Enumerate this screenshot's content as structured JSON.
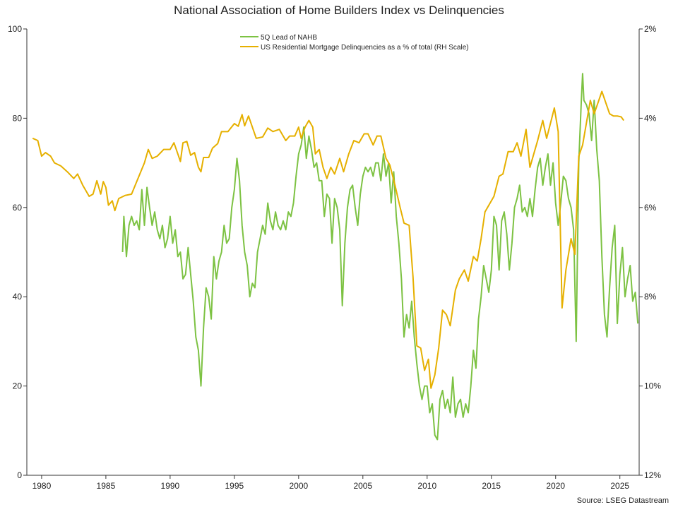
{
  "chart_data": {
    "type": "line",
    "title": "National Association of Home Builders Index vs Delinquencies",
    "source": "Source: LSEG Datastream",
    "xlim": [
      1978.85,
      2026.5
    ],
    "xticks": [
      1980,
      1985,
      1990,
      1995,
      2000,
      2005,
      2010,
      2015,
      2020,
      2025
    ],
    "ylim": [
      0,
      100
    ],
    "yticks": [
      0,
      20,
      40,
      60,
      80,
      100
    ],
    "y2lim": [
      12,
      2
    ],
    "y2ticks": [
      {
        "value": 2,
        "label": "2%"
      },
      {
        "value": 4,
        "label": "4%"
      },
      {
        "value": 6,
        "label": "6%"
      },
      {
        "value": 8,
        "label": "8%"
      },
      {
        "value": 10,
        "label": "10%"
      },
      {
        "value": 12,
        "label": "12%"
      }
    ],
    "legend": "top-center",
    "series": [
      {
        "name": "5Q Lead of NAHB",
        "color": "#7dc243",
        "x": [
          1986.3,
          1986.4,
          1986.6,
          1986.8,
          1987,
          1987.2,
          1987.4,
          1987.6,
          1987.8,
          1988,
          1988.2,
          1988.4,
          1988.6,
          1988.8,
          1989,
          1989.2,
          1989.4,
          1989.6,
          1989.8,
          1990,
          1990.2,
          1990.4,
          1990.6,
          1990.8,
          1991,
          1991.2,
          1991.4,
          1991.6,
          1991.8,
          1992,
          1992.2,
          1992.4,
          1992.6,
          1992.8,
          1993,
          1993.2,
          1993.4,
          1993.6,
          1993.8,
          1994,
          1994.2,
          1994.4,
          1994.6,
          1994.8,
          1995,
          1995.2,
          1995.4,
          1995.6,
          1995.8,
          1996,
          1996.2,
          1996.4,
          1996.6,
          1996.8,
          1997,
          1997.2,
          1997.4,
          1997.6,
          1997.8,
          1998,
          1998.2,
          1998.4,
          1998.6,
          1998.8,
          1999,
          1999.2,
          1999.4,
          1999.6,
          1999.8,
          2000,
          2000.2,
          2000.4,
          2000.6,
          2000.8,
          2001,
          2001.2,
          2001.4,
          2001.6,
          2001.8,
          2002,
          2002.2,
          2002.4,
          2002.6,
          2002.8,
          2003,
          2003.2,
          2003.4,
          2003.6,
          2003.8,
          2004,
          2004.2,
          2004.4,
          2004.6,
          2004.8,
          2005,
          2005.2,
          2005.4,
          2005.6,
          2005.8,
          2006,
          2006.2,
          2006.4,
          2006.6,
          2006.8,
          2007,
          2007.2,
          2007.4,
          2007.6,
          2007.8,
          2008,
          2008.2,
          2008.4,
          2008.6,
          2008.8,
          2009,
          2009.2,
          2009.4,
          2009.6,
          2009.8,
          2010,
          2010.2,
          2010.4,
          2010.6,
          2010.8,
          2011,
          2011.2,
          2011.4,
          2011.6,
          2011.8,
          2012,
          2012.2,
          2012.4,
          2012.6,
          2012.8,
          2013,
          2013.2,
          2013.4,
          2013.6,
          2013.8,
          2014,
          2014.2,
          2014.4,
          2014.6,
          2014.8,
          2015,
          2015.2,
          2015.4,
          2015.6,
          2015.8,
          2016,
          2016.2,
          2016.4,
          2016.6,
          2016.8,
          2017,
          2017.2,
          2017.4,
          2017.6,
          2017.8,
          2018,
          2018.2,
          2018.4,
          2018.6,
          2018.8,
          2019,
          2019.2,
          2019.4,
          2019.6,
          2019.8,
          2020,
          2020.2,
          2020.4,
          2020.6,
          2020.8,
          2021,
          2021.2,
          2021.4,
          2021.6,
          2021.8,
          2022,
          2022.1,
          2022.2,
          2022.4,
          2022.6,
          2022.8,
          2023,
          2023.2,
          2023.4,
          2023.6,
          2023.8,
          2024,
          2024.2,
          2024.4,
          2024.6,
          2024.8,
          2025,
          2025.2,
          2025.4,
          2025.6,
          2025.8,
          2026,
          2026.2,
          2026.4
        ],
        "values": [
          50,
          58,
          49,
          56,
          58,
          56,
          57,
          55,
          64,
          56,
          64.5,
          60,
          56,
          59,
          55,
          53,
          56,
          51,
          53,
          58,
          52,
          55,
          49,
          50,
          44,
          45,
          51,
          45,
          39,
          31,
          28,
          20,
          33,
          42,
          40,
          35,
          49,
          44,
          48,
          50,
          56,
          52,
          53,
          60,
          64,
          71,
          66,
          56,
          50,
          47,
          40,
          43,
          42,
          50,
          53,
          56,
          54,
          61,
          57,
          55,
          59,
          56,
          55,
          57,
          55,
          59,
          58,
          61,
          67,
          72,
          74,
          78,
          71,
          76,
          73,
          69,
          70,
          66,
          66,
          58,
          63,
          62,
          52,
          62,
          60,
          55,
          38,
          52,
          60,
          64,
          65,
          60,
          56,
          63,
          67,
          69,
          68,
          69,
          67,
          70,
          70,
          66,
          72,
          67,
          70,
          61,
          68,
          58,
          52,
          44,
          31,
          36,
          33,
          39,
          31,
          25,
          20,
          17,
          20,
          20,
          14,
          16,
          9,
          8,
          17,
          19,
          15,
          17,
          14,
          22,
          13,
          16,
          17,
          13,
          16,
          14,
          20,
          28,
          24,
          35,
          40,
          47,
          44,
          41,
          46,
          58,
          56,
          46,
          57,
          59,
          54,
          46,
          52,
          60,
          62,
          65,
          59,
          60,
          58,
          62,
          58,
          64,
          69,
          71,
          65,
          69,
          72,
          65,
          70,
          61,
          56,
          61,
          67,
          66,
          62,
          60,
          55,
          30,
          70,
          84,
          90,
          84,
          83,
          81,
          75,
          84,
          73,
          66,
          49,
          36,
          31,
          42,
          51,
          56,
          34,
          45,
          51,
          40,
          44,
          47,
          39,
          41,
          34
        ]
      },
      {
        "name": "US Residential Mortgage Delinquencies as a % of total (RH Scale)",
        "color": "#e6b000",
        "axis": "y2",
        "x": [
          1979.3,
          1979.7,
          1980,
          1980.3,
          1980.7,
          1981,
          1981.5,
          1982,
          1982.5,
          1982.8,
          1983.2,
          1983.7,
          1984,
          1984.3,
          1984.6,
          1984.8,
          1985,
          1985.2,
          1985.5,
          1985.7,
          1986,
          1986.5,
          1987,
          1987.5,
          1988,
          1988.3,
          1988.6,
          1989,
          1989.5,
          1990,
          1990.3,
          1990.6,
          1990.8,
          1991,
          1991.3,
          1991.6,
          1991.9,
          1992.2,
          1992.4,
          1992.6,
          1993,
          1993.3,
          1993.7,
          1994,
          1994.5,
          1995,
          1995.3,
          1995.6,
          1995.8,
          1996.1,
          1996.4,
          1996.7,
          1997.2,
          1997.6,
          1998,
          1998.5,
          1999,
          1999.3,
          1999.7,
          2000,
          2000.2,
          2000.5,
          2000.8,
          2001.1,
          2001.3,
          2001.6,
          2001.9,
          2002.2,
          2002.5,
          2002.8,
          2003.2,
          2003.5,
          2003.9,
          2004.3,
          2004.7,
          2005.1,
          2005.4,
          2005.8,
          2006.1,
          2006.4,
          2006.8,
          2007.1,
          2007.5,
          2007.9,
          2008.2,
          2008.6,
          2008.9,
          2009.2,
          2009.5,
          2009.8,
          2010.1,
          2010.3,
          2010.6,
          2010.9,
          2011.2,
          2011.5,
          2011.8,
          2012.2,
          2012.5,
          2012.9,
          2013.2,
          2013.6,
          2013.9,
          2014.2,
          2014.5,
          2014.9,
          2015.2,
          2015.6,
          2015.9,
          2016.3,
          2016.7,
          2017,
          2017.3,
          2017.7,
          2018,
          2018.3,
          2018.6,
          2019,
          2019.3,
          2019.7,
          2019.9,
          2020.2,
          2020.5,
          2020.8,
          2021.2,
          2021.5,
          2021.8,
          2022.1,
          2022.4,
          2022.7,
          2023,
          2023.3,
          2023.6,
          2023.9,
          2024.2,
          2024.5,
          2024.8,
          2025.1,
          2025.3
        ],
        "values": [
          4.45,
          4.5,
          4.85,
          4.77,
          4.85,
          5.0,
          5.07,
          5.2,
          5.35,
          5.25,
          5.5,
          5.75,
          5.7,
          5.4,
          5.7,
          5.42,
          5.55,
          5.95,
          5.85,
          6.07,
          5.8,
          5.73,
          5.7,
          5.35,
          5.0,
          4.7,
          4.9,
          4.85,
          4.7,
          4.7,
          4.55,
          4.8,
          4.97,
          4.55,
          4.52,
          4.83,
          4.77,
          5.1,
          5.2,
          4.88,
          4.88,
          4.67,
          4.57,
          4.3,
          4.3,
          4.12,
          4.18,
          3.92,
          4.17,
          3.95,
          4.2,
          4.45,
          4.42,
          4.22,
          4.3,
          4.25,
          4.5,
          4.4,
          4.4,
          4.2,
          4.45,
          4.2,
          4.05,
          4.2,
          4.8,
          4.7,
          5.1,
          5.35,
          5.1,
          5.25,
          4.9,
          5.2,
          4.8,
          4.5,
          4.55,
          4.35,
          4.35,
          4.6,
          4.4,
          4.4,
          4.9,
          5.05,
          5.5,
          6.0,
          6.35,
          6.4,
          7.55,
          9.1,
          9.15,
          9.65,
          9.4,
          10.05,
          9.75,
          9.15,
          8.3,
          8.4,
          8.65,
          7.85,
          7.6,
          7.4,
          7.65,
          7.1,
          7.2,
          6.7,
          6.1,
          5.9,
          5.75,
          5.3,
          5.25,
          4.75,
          4.75,
          4.55,
          4.85,
          4.25,
          5.1,
          4.8,
          4.5,
          4.05,
          4.45,
          4.0,
          3.77,
          4.3,
          8.25,
          7.4,
          6.7,
          7.05,
          4.85,
          4.6,
          4.1,
          3.6,
          3.9,
          3.65,
          3.4,
          3.65,
          3.9,
          3.95,
          3.95,
          3.97,
          4.05
        ]
      }
    ]
  }
}
